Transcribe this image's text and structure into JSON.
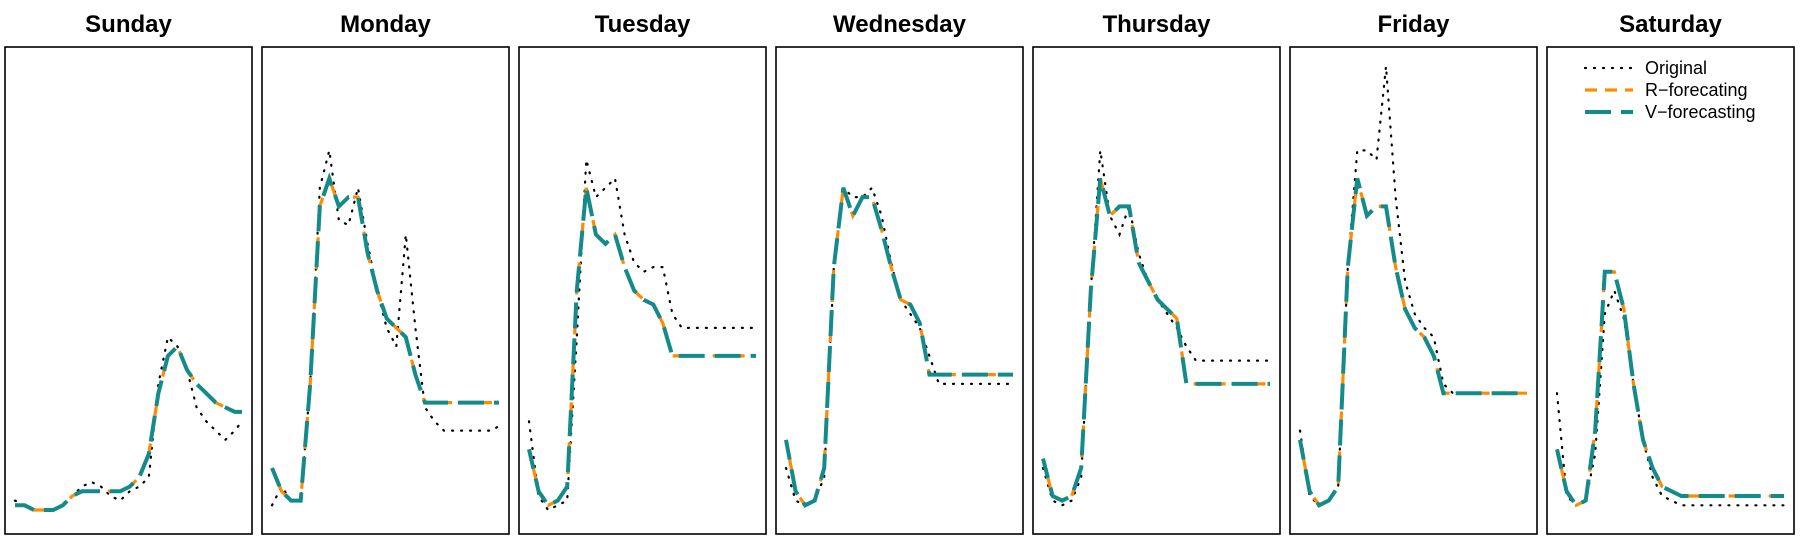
{
  "chart_data": {
    "type": "line",
    "figure_description_title": "",
    "series_names": [
      "Original",
      "R−forecating",
      "V−forecasting"
    ],
    "colors": {
      "Original": "#000000",
      "R-forecasting": "#ff8c00",
      "V-forecasting": "#148a8a",
      "frame": "#000000"
    },
    "legend": {
      "position": "top-right-of-last-panel",
      "labels": [
        "Original",
        "R−forecating",
        "V−forecasting"
      ]
    },
    "x": [
      0,
      4,
      8,
      12,
      16,
      20,
      24,
      28,
      32,
      36,
      40,
      44,
      48,
      52,
      56,
      60,
      64,
      68,
      72,
      76,
      80,
      84,
      88,
      92,
      95
    ],
    "xlim": [
      0,
      95
    ],
    "ylim": [
      0,
      1
    ],
    "axes_visible": false,
    "panels": [
      {
        "title": "Sunday",
        "original": [
          0.05,
          0.04,
          0.03,
          0.03,
          0.03,
          0.04,
          0.06,
          0.08,
          0.09,
          0.08,
          0.06,
          0.05,
          0.07,
          0.08,
          0.1,
          0.3,
          0.4,
          0.38,
          0.33,
          0.25,
          0.22,
          0.2,
          0.18,
          0.2,
          0.22
        ],
        "forecast": [
          0.04,
          0.04,
          0.03,
          0.03,
          0.03,
          0.04,
          0.06,
          0.07,
          0.07,
          0.07,
          0.07,
          0.07,
          0.08,
          0.1,
          0.15,
          0.28,
          0.36,
          0.38,
          0.33,
          0.3,
          0.28,
          0.26,
          0.25,
          0.24,
          0.24
        ]
      },
      {
        "title": "Monday",
        "original": [
          0.04,
          0.08,
          0.05,
          0.05,
          0.3,
          0.72,
          0.8,
          0.65,
          0.64,
          0.72,
          0.6,
          0.5,
          0.42,
          0.38,
          0.62,
          0.42,
          0.25,
          0.22,
          0.2,
          0.2,
          0.2,
          0.2,
          0.2,
          0.2,
          0.21
        ],
        "forecast": [
          0.12,
          0.07,
          0.05,
          0.05,
          0.3,
          0.68,
          0.74,
          0.68,
          0.7,
          0.7,
          0.58,
          0.5,
          0.44,
          0.42,
          0.4,
          0.32,
          0.26,
          0.26,
          0.26,
          0.26,
          0.26,
          0.26,
          0.26,
          0.26,
          0.26
        ]
      },
      {
        "title": "Tuesday",
        "original": [
          0.22,
          0.06,
          0.03,
          0.04,
          0.05,
          0.4,
          0.78,
          0.7,
          0.72,
          0.74,
          0.62,
          0.56,
          0.54,
          0.55,
          0.55,
          0.45,
          0.42,
          0.42,
          0.42,
          0.42,
          0.42,
          0.42,
          0.42,
          0.42,
          0.42
        ],
        "forecast": [
          0.16,
          0.07,
          0.04,
          0.05,
          0.08,
          0.5,
          0.72,
          0.62,
          0.6,
          0.62,
          0.55,
          0.5,
          0.48,
          0.47,
          0.43,
          0.36,
          0.36,
          0.36,
          0.36,
          0.36,
          0.36,
          0.36,
          0.36,
          0.36,
          0.36
        ]
      },
      {
        "title": "Wednesday",
        "original": [
          0.12,
          0.05,
          0.04,
          0.05,
          0.1,
          0.55,
          0.72,
          0.7,
          0.7,
          0.72,
          0.66,
          0.56,
          0.48,
          0.45,
          0.42,
          0.36,
          0.3,
          0.3,
          0.3,
          0.3,
          0.3,
          0.3,
          0.3,
          0.3,
          0.3
        ],
        "forecast": [
          0.18,
          0.07,
          0.04,
          0.05,
          0.12,
          0.55,
          0.72,
          0.66,
          0.7,
          0.7,
          0.63,
          0.55,
          0.48,
          0.47,
          0.43,
          0.32,
          0.32,
          0.32,
          0.32,
          0.32,
          0.32,
          0.32,
          0.32,
          0.32,
          0.32
        ]
      },
      {
        "title": "Thursday",
        "original": [
          0.12,
          0.05,
          0.04,
          0.05,
          0.1,
          0.5,
          0.8,
          0.66,
          0.62,
          0.68,
          0.58,
          0.52,
          0.48,
          0.45,
          0.42,
          0.38,
          0.35,
          0.35,
          0.35,
          0.35,
          0.35,
          0.35,
          0.35,
          0.35,
          0.35
        ],
        "forecast": [
          0.14,
          0.06,
          0.05,
          0.06,
          0.12,
          0.5,
          0.74,
          0.66,
          0.68,
          0.68,
          0.56,
          0.52,
          0.48,
          0.46,
          0.44,
          0.3,
          0.3,
          0.3,
          0.3,
          0.3,
          0.3,
          0.3,
          0.3,
          0.3,
          0.3
        ]
      },
      {
        "title": "Friday",
        "original": [
          0.2,
          0.06,
          0.04,
          0.05,
          0.08,
          0.55,
          0.8,
          0.8,
          0.78,
          0.98,
          0.7,
          0.52,
          0.45,
          0.42,
          0.4,
          0.3,
          0.28,
          0.28,
          0.28,
          0.28,
          0.28,
          0.28,
          0.28,
          0.28,
          0.28
        ],
        "forecast": [
          0.18,
          0.07,
          0.04,
          0.05,
          0.08,
          0.55,
          0.74,
          0.66,
          0.68,
          0.68,
          0.55,
          0.46,
          0.42,
          0.4,
          0.36,
          0.28,
          0.28,
          0.28,
          0.28,
          0.28,
          0.28,
          0.28,
          0.28,
          0.28,
          0.28
        ]
      },
      {
        "title": "Saturday",
        "original": [
          0.28,
          0.06,
          0.04,
          0.05,
          0.15,
          0.45,
          0.5,
          0.44,
          0.3,
          0.18,
          0.1,
          0.06,
          0.05,
          0.04,
          0.04,
          0.04,
          0.04,
          0.04,
          0.04,
          0.04,
          0.04,
          0.04,
          0.04,
          0.04,
          0.04
        ],
        "forecast": [
          0.16,
          0.07,
          0.04,
          0.05,
          0.2,
          0.54,
          0.54,
          0.46,
          0.3,
          0.18,
          0.12,
          0.08,
          0.07,
          0.06,
          0.06,
          0.06,
          0.06,
          0.06,
          0.06,
          0.06,
          0.06,
          0.06,
          0.06,
          0.06,
          0.06
        ]
      }
    ]
  }
}
